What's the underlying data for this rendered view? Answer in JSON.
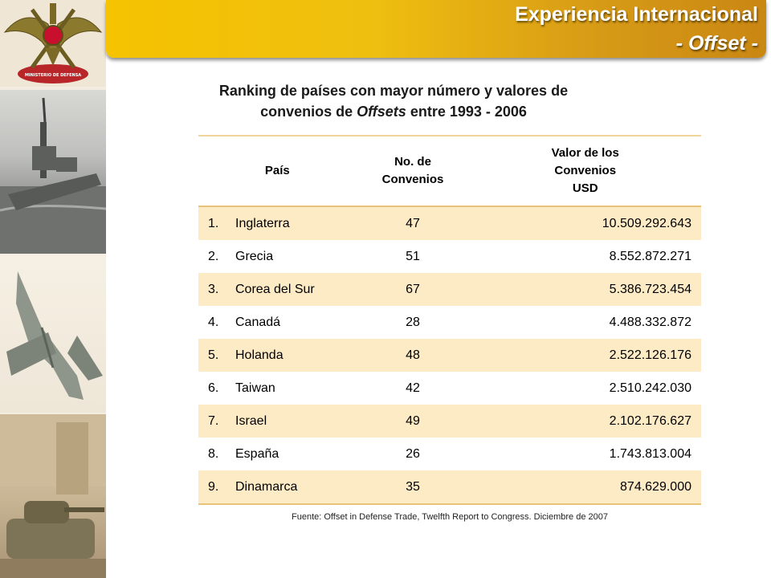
{
  "banner": {
    "title": "Experiencia Internacional",
    "subtitle": "- Offset -"
  },
  "emblem": {
    "text_top": "MINISTERIO",
    "text_mid": "DE",
    "text_bottom": "DEFENSA"
  },
  "heading": {
    "line1": "Ranking de países con mayor número y valores de",
    "line2_pre": "convenios de ",
    "line2_em": "Offsets",
    "line2_post": " entre 1993 - 2006"
  },
  "table": {
    "headers": {
      "country": "País",
      "count_l1": "No. de",
      "count_l2": "Convenios",
      "value_l1": "Valor de los",
      "value_l2": "Convenios",
      "value_l3": "USD"
    },
    "rows": [
      {
        "rank": "1.",
        "country": "Inglaterra",
        "count": "47",
        "value": "10.509.292.643"
      },
      {
        "rank": "2.",
        "country": "Grecia",
        "count": "51",
        "value": "8.552.872.271"
      },
      {
        "rank": "3.",
        "country": "Corea del Sur",
        "count": "67",
        "value": "5.386.723.454"
      },
      {
        "rank": "4.",
        "country": "Canadá",
        "count": "28",
        "value": "4.488.332.872"
      },
      {
        "rank": "5.",
        "country": "Holanda",
        "count": "48",
        "value": "2.522.126.176"
      },
      {
        "rank": "6.",
        "country": "Taiwan",
        "count": "42",
        "value": "2.510.242.030"
      },
      {
        "rank": "7.",
        "country": "Israel",
        "count": "49",
        "value": "2.102.176.627"
      },
      {
        "rank": "8.",
        "country": "España",
        "count": "26",
        "value": "1.743.813.004"
      },
      {
        "rank": "9.",
        "country": "Dinamarca",
        "count": "35",
        "value": "874.629.000"
      }
    ]
  },
  "source": "Fuente:   Offset in Defense Trade, Twelfth Report to Congress. Diciembre de  2007",
  "colors": {
    "banner_gold": "#f5c300",
    "row_stripe": "#fdebc6",
    "rule": "#e8c27a"
  }
}
